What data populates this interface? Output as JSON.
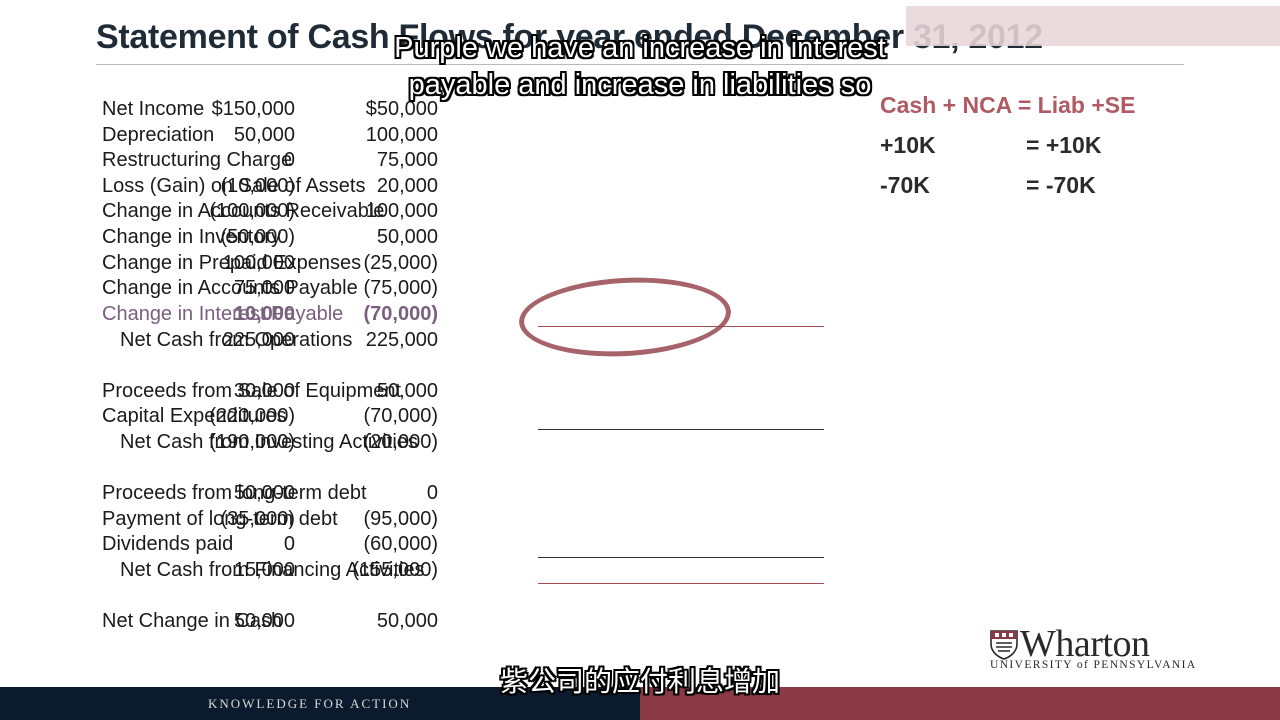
{
  "slide": {
    "title": "Statement of Cash Flows for year ended December 31, 2012"
  },
  "statement": {
    "rows": [
      {
        "label": "Net Income",
        "v1": "$150,000",
        "v2": "$50,000"
      },
      {
        "label": "Depreciation",
        "v1": "50,000",
        "v2": "100,000"
      },
      {
        "label": "Restructuring Charge",
        "v1": "0",
        "v2": "75,000"
      },
      {
        "label": "Loss (Gain) on Sale of Assets",
        "v1": "(10,000)",
        "v2": "20,000"
      },
      {
        "label": "Change in Accounts Receivable",
        "v1": "(100,000)",
        "v2": "100,000"
      },
      {
        "label": "Change in Inventory",
        "v1": "(50,000)",
        "v2": "50,000"
      },
      {
        "label": "Change in Prepaid Expenses",
        "v1": "100,000",
        "v2": "(25,000)"
      },
      {
        "label": "Change in Accounts Payable",
        "v1": "75,000",
        "v2": "(75,000)"
      },
      {
        "label": "Change in Interest Payable",
        "v1": "10,000",
        "v2": "(70,000)"
      },
      {
        "label": "Net Cash from Operations",
        "v1": "225,000",
        "v2": "225,000"
      },
      {
        "label": "Proceeds from Sale of Equipment",
        "v1": "30,000",
        "v2": "50,000"
      },
      {
        "label": "Capital Expenditures",
        "v1": "(220,000)",
        "v2": "(70,000)"
      },
      {
        "label": "Net Cash from Investing Activities",
        "v1": "(190,000)",
        "v2": "(20,000)"
      },
      {
        "label": "Proceeds from long-term debt",
        "v1": "50,000",
        "v2": "0"
      },
      {
        "label": "Payment of long-term debt",
        "v1": "(35,000)",
        "v2": "(95,000)"
      },
      {
        "label": "Dividends paid",
        "v1": "0",
        "v2": "(60,000)"
      },
      {
        "label": "Net Cash from Financing Activities",
        "v1": "15,000",
        "v2": "(155,000)"
      },
      {
        "label": "Net Change in Cash",
        "v1": "50,000",
        "v2": "50,000"
      }
    ]
  },
  "equation": {
    "header": "Cash + NCA = Liab +SE",
    "row1_left": "+10K",
    "row1_right": "=  +10K",
    "row2_left": "-70K",
    "row2_right": "=  -70K"
  },
  "subtitles": {
    "line1": "Purple we have an increase in interest",
    "line2": "payable and increase in liabilities so",
    "chinese": "紫公司的应付利息增加"
  },
  "branding": {
    "logo_text": "Wharton",
    "logo_subtext": "UNIVERSITY of PENNSYLVANIA",
    "footer_text": "KNOWLEDGE FOR ACTION"
  },
  "colors": {
    "purple_row": "#7a5f7e",
    "equation_header": "#b05a63",
    "circle": "#9a4d55",
    "footer_navy": "#0c1a2e",
    "footer_maroon": "#8a3a44"
  }
}
